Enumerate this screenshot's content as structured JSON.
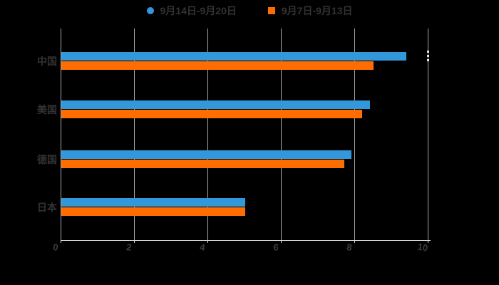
{
  "legend": {
    "items": [
      {
        "label": "9月14日-9月20日",
        "color": "#3398DB",
        "marker": "circle"
      },
      {
        "label": "9月7日-9月13日",
        "color": "#FF6D00",
        "marker": "square"
      }
    ]
  },
  "chart_data": {
    "type": "bar",
    "orientation": "horizontal",
    "title": "",
    "xlabel": "",
    "ylabel": "",
    "categories": [
      "中国",
      "美国",
      "德国",
      "日本"
    ],
    "series": [
      {
        "name": "9月14日-9月20日",
        "color": "#3398DB",
        "values": [
          9.4,
          8.4,
          7.9,
          5.0
        ]
      },
      {
        "name": "9月7日-9月13日",
        "color": "#FF6D00",
        "values": [
          8.5,
          8.2,
          7.7,
          5.0
        ]
      }
    ],
    "xticks": [
      0,
      2,
      4,
      6,
      8,
      10
    ],
    "xlim": [
      0,
      10
    ],
    "grid": true,
    "legend_position": "top",
    "background": "#000000",
    "text_color": "#333333",
    "gridline_color": "#A8A8A8",
    "axis_color": "#DCDCDC"
  }
}
